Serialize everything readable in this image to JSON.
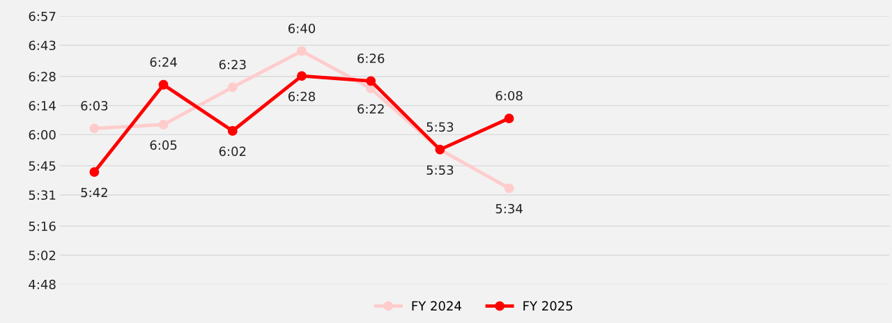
{
  "chart_data": {
    "type": "line",
    "categories": [
      null,
      null,
      null,
      null,
      null,
      null,
      null,
      null,
      null,
      null,
      null,
      null
    ],
    "series": [
      {
        "name": "FY 2024",
        "color": "#ffcccc",
        "values": [
          6.05,
          6.08,
          6.38,
          6.67,
          6.37,
          5.88,
          5.57,
          null,
          null,
          null,
          null,
          null
        ],
        "value_labels": [
          "6:03",
          "6:05",
          "6:23",
          "6:40",
          "6:22",
          "5:53",
          "5:34",
          null,
          null,
          null,
          null,
          null
        ]
      },
      {
        "name": "FY 2025",
        "color": "#ff0000",
        "values": [
          5.7,
          6.4,
          6.03,
          6.47,
          6.43,
          5.88,
          6.13,
          null,
          null,
          null,
          null,
          null
        ],
        "value_labels": [
          "5:42",
          "6:24",
          "6:02",
          "6:28",
          "6:26",
          "5:53",
          "6:08",
          null,
          null,
          null,
          null,
          null
        ]
      }
    ],
    "ylim": [
      4.8,
      6.95
    ],
    "yticks": [
      {
        "value": 4.8,
        "label": "4:48"
      },
      {
        "value": 5.0333,
        "label": "5:02"
      },
      {
        "value": 5.2667,
        "label": "5:16"
      },
      {
        "value": 5.5167,
        "label": "5:31"
      },
      {
        "value": 5.75,
        "label": "5:45"
      },
      {
        "value": 6.0,
        "label": "6:00"
      },
      {
        "value": 6.2333,
        "label": "6:14"
      },
      {
        "value": 6.4667,
        "label": "6:28"
      },
      {
        "value": 6.7167,
        "label": "6:43"
      },
      {
        "value": 6.95,
        "label": "6:57"
      }
    ],
    "grid": "y",
    "legend": "bottom",
    "marker": "circle",
    "line_style": "solid",
    "tick_labels": "y"
  }
}
